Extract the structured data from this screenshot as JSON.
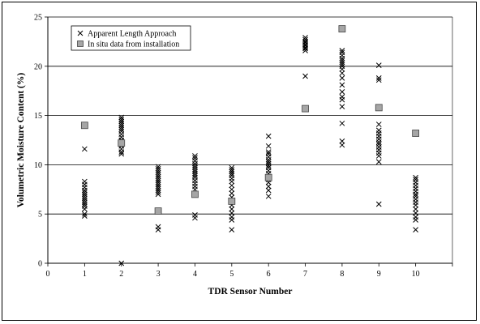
{
  "chart_data": {
    "type": "scatter",
    "title": "",
    "xlabel": "TDR Sensor Number",
    "ylabel": "Volumetric Moisture Content (%)",
    "xlim": [
      0,
      11
    ],
    "ylim": [
      0,
      25
    ],
    "xticks": [
      0,
      1,
      2,
      3,
      4,
      5,
      6,
      7,
      8,
      9,
      10
    ],
    "yticks": [
      0,
      5,
      10,
      15,
      20,
      25
    ],
    "grid": "horizontal",
    "legend_position": "top-left",
    "series": [
      {
        "name": "Apparent Length Approach",
        "marker": "x",
        "color": "#000000",
        "points": [
          [
            1,
            11.6
          ],
          [
            1,
            8.3
          ],
          [
            1,
            8.0
          ],
          [
            1,
            7.7
          ],
          [
            1,
            7.4
          ],
          [
            1,
            7.2
          ],
          [
            1,
            7.0
          ],
          [
            1,
            6.8
          ],
          [
            1,
            6.6
          ],
          [
            1,
            6.4
          ],
          [
            1,
            6.2
          ],
          [
            1,
            6.0
          ],
          [
            1,
            5.8
          ],
          [
            1,
            5.5
          ],
          [
            1,
            5.0
          ],
          [
            1,
            4.8
          ],
          [
            2,
            14.8
          ],
          [
            2,
            14.6
          ],
          [
            2,
            14.4
          ],
          [
            2,
            14.2
          ],
          [
            2,
            14.0
          ],
          [
            2,
            13.8
          ],
          [
            2,
            13.6
          ],
          [
            2,
            13.4
          ],
          [
            2,
            13.1
          ],
          [
            2,
            12.8
          ],
          [
            2,
            12.5
          ],
          [
            2,
            12.2
          ],
          [
            2,
            11.9
          ],
          [
            2,
            11.6
          ],
          [
            2,
            11.3
          ],
          [
            2,
            11.1
          ],
          [
            2,
            0.0
          ],
          [
            3,
            9.8
          ],
          [
            3,
            9.6
          ],
          [
            3,
            9.4
          ],
          [
            3,
            9.2
          ],
          [
            3,
            9.0
          ],
          [
            3,
            8.8
          ],
          [
            3,
            8.6
          ],
          [
            3,
            8.4
          ],
          [
            3,
            8.2
          ],
          [
            3,
            8.0
          ],
          [
            3,
            7.8
          ],
          [
            3,
            7.6
          ],
          [
            3,
            7.4
          ],
          [
            3,
            7.2
          ],
          [
            3,
            7.0
          ],
          [
            3,
            3.7
          ],
          [
            3,
            3.4
          ],
          [
            4,
            10.9
          ],
          [
            4,
            10.7
          ],
          [
            4,
            10.4
          ],
          [
            4,
            10.1
          ],
          [
            4,
            9.9
          ],
          [
            4,
            9.7
          ],
          [
            4,
            9.5
          ],
          [
            4,
            9.3
          ],
          [
            4,
            9.1
          ],
          [
            4,
            8.9
          ],
          [
            4,
            8.7
          ],
          [
            4,
            8.4
          ],
          [
            4,
            8.1
          ],
          [
            4,
            7.8
          ],
          [
            4,
            7.5
          ],
          [
            4,
            4.9
          ],
          [
            4,
            4.6
          ],
          [
            5,
            9.7
          ],
          [
            5,
            9.5
          ],
          [
            5,
            9.3
          ],
          [
            5,
            9.1
          ],
          [
            5,
            8.9
          ],
          [
            5,
            8.6
          ],
          [
            5,
            8.3
          ],
          [
            5,
            7.9
          ],
          [
            5,
            7.5
          ],
          [
            5,
            7.1
          ],
          [
            5,
            6.7
          ],
          [
            5,
            6.3
          ],
          [
            5,
            5.9
          ],
          [
            5,
            5.5
          ],
          [
            5,
            5.1
          ],
          [
            5,
            4.7
          ],
          [
            5,
            4.4
          ],
          [
            5,
            3.4
          ],
          [
            6,
            12.9
          ],
          [
            6,
            11.9
          ],
          [
            6,
            11.3
          ],
          [
            6,
            11.1
          ],
          [
            6,
            10.8
          ],
          [
            6,
            10.5
          ],
          [
            6,
            10.3
          ],
          [
            6,
            10.1
          ],
          [
            6,
            9.9
          ],
          [
            6,
            9.7
          ],
          [
            6,
            9.4
          ],
          [
            6,
            9.1
          ],
          [
            6,
            8.8
          ],
          [
            6,
            8.5
          ],
          [
            6,
            8.2
          ],
          [
            6,
            7.8
          ],
          [
            6,
            7.4
          ],
          [
            6,
            6.8
          ],
          [
            7,
            22.9
          ],
          [
            7,
            22.7
          ],
          [
            7,
            22.5
          ],
          [
            7,
            22.4
          ],
          [
            7,
            22.2
          ],
          [
            7,
            22.1
          ],
          [
            7,
            21.9
          ],
          [
            7,
            21.8
          ],
          [
            7,
            21.6
          ],
          [
            7,
            19.0
          ],
          [
            8,
            21.6
          ],
          [
            8,
            21.4
          ],
          [
            8,
            21.1
          ],
          [
            8,
            20.8
          ],
          [
            8,
            20.6
          ],
          [
            8,
            20.4
          ],
          [
            8,
            20.2
          ],
          [
            8,
            20.0
          ],
          [
            8,
            19.7
          ],
          [
            8,
            19.3
          ],
          [
            8,
            18.8
          ],
          [
            8,
            18.1
          ],
          [
            8,
            17.4
          ],
          [
            8,
            16.9
          ],
          [
            8,
            16.6
          ],
          [
            8,
            15.9
          ],
          [
            8,
            14.2
          ],
          [
            8,
            12.4
          ],
          [
            8,
            12.0
          ],
          [
            9,
            20.1
          ],
          [
            9,
            18.8
          ],
          [
            9,
            18.6
          ],
          [
            9,
            14.1
          ],
          [
            9,
            13.5
          ],
          [
            9,
            13.2
          ],
          [
            9,
            12.9
          ],
          [
            9,
            12.6
          ],
          [
            9,
            12.3
          ],
          [
            9,
            12.1
          ],
          [
            9,
            11.8
          ],
          [
            9,
            11.5
          ],
          [
            9,
            11.2
          ],
          [
            9,
            10.9
          ],
          [
            9,
            10.3
          ],
          [
            9,
            6.0
          ],
          [
            10,
            8.7
          ],
          [
            10,
            8.5
          ],
          [
            10,
            8.2
          ],
          [
            10,
            7.9
          ],
          [
            10,
            7.6
          ],
          [
            10,
            7.3
          ],
          [
            10,
            7.0
          ],
          [
            10,
            6.8
          ],
          [
            10,
            6.5
          ],
          [
            10,
            6.2
          ],
          [
            10,
            5.9
          ],
          [
            10,
            5.5
          ],
          [
            10,
            5.1
          ],
          [
            10,
            4.7
          ],
          [
            10,
            4.4
          ],
          [
            10,
            3.4
          ]
        ]
      },
      {
        "name": "In situ data from installation",
        "marker": "square",
        "color": "#a6a6a6",
        "points": [
          [
            1,
            14.0
          ],
          [
            2,
            12.2
          ],
          [
            3,
            5.3
          ],
          [
            4,
            7.0
          ],
          [
            5,
            6.3
          ],
          [
            6,
            8.7
          ],
          [
            7,
            15.7
          ],
          [
            8,
            23.8
          ],
          [
            9,
            15.8
          ],
          [
            10,
            13.2
          ]
        ]
      }
    ]
  }
}
